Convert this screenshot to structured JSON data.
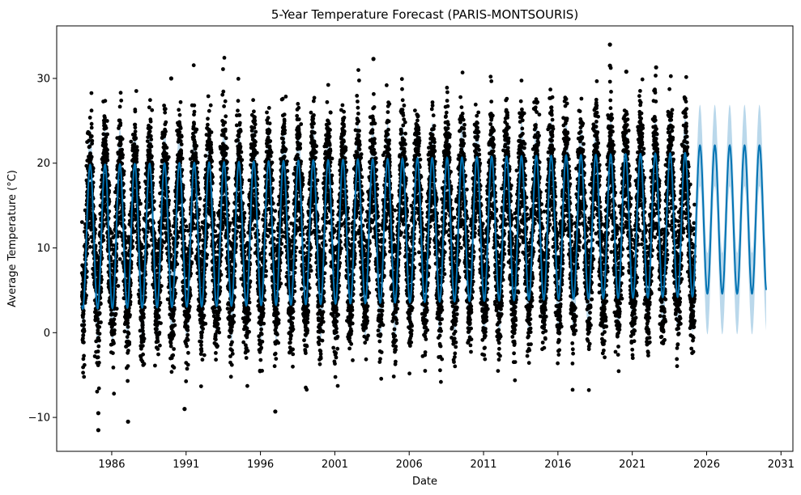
{
  "chart_data": {
    "type": "scatter",
    "title": "5-Year Temperature Forecast (PARIS-MONTSOURIS)",
    "xlabel": "Date",
    "ylabel": "Average Temperature (°C)",
    "xlim": [
      1982.3,
      2031.8
    ],
    "ylim": [
      -14,
      36.2
    ],
    "x_ticks": [
      1986,
      1991,
      1996,
      2001,
      2006,
      2011,
      2016,
      2021,
      2026,
      2031
    ],
    "y_ticks": [
      -10,
      0,
      10,
      20,
      30
    ],
    "grid": false,
    "legend": "none",
    "series": [
      {
        "kind": "observed_points",
        "color": "#000000",
        "x_range": [
          1984.0,
          2025.2
        ],
        "seasonal_mean_min": 3.3,
        "seasonal_mean_max": 20.3,
        "typical_spread": 3.5
      },
      {
        "kind": "forecast_line",
        "color": "#0072B2",
        "x_range": [
          1984.0,
          2030.0
        ],
        "min": 5.5,
        "max": 23.0
      },
      {
        "kind": "uncertainty_band",
        "color": "#9cc7e3",
        "half_width": 4.2
      }
    ],
    "notable_points": [
      {
        "x": 1985.1,
        "y": -11.5
      },
      {
        "x": 1985.1,
        "y": -9.5
      },
      {
        "x": 1987.1,
        "y": -10.5
      },
      {
        "x": 1997.0,
        "y": -9.3
      },
      {
        "x": 1990.9,
        "y": -9.0
      },
      {
        "x": 2003.6,
        "y": 32.3
      },
      {
        "x": 2019.5,
        "y": 34.0
      },
      {
        "x": 2019.5,
        "y": 31.5
      },
      {
        "x": 1990.0,
        "y": 30.0
      },
      {
        "x": 2020.6,
        "y": 30.8
      },
      {
        "x": 2022.6,
        "y": 31.3
      }
    ]
  }
}
